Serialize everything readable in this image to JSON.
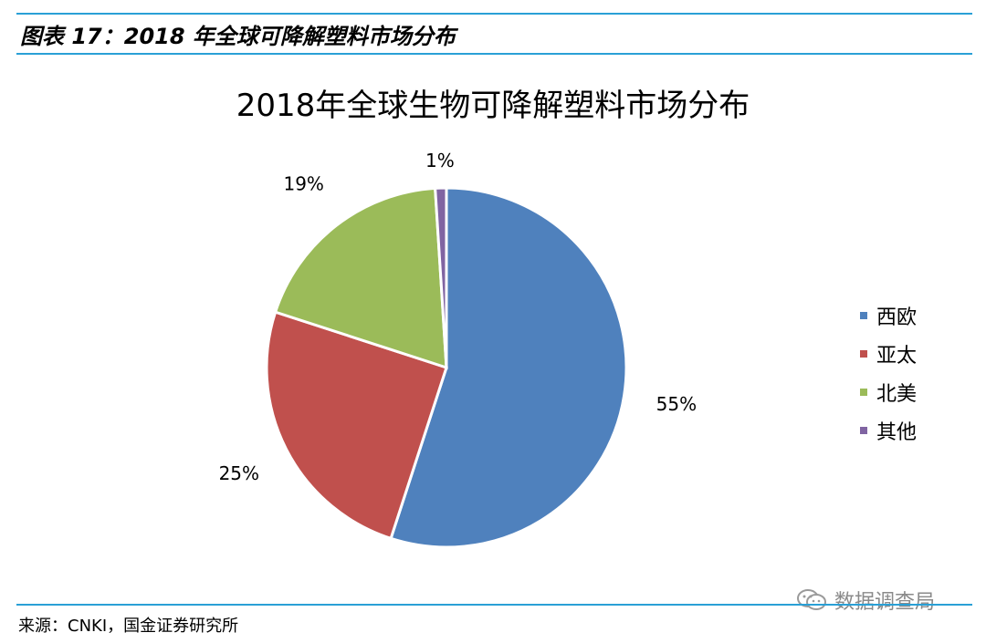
{
  "figure_title": "图表 17：2018 年全球可降解塑料市场分布",
  "source_text": "来源：CNKI，国金证券研究所",
  "watermark_text": "数据调查局",
  "chart_data": {
    "type": "pie",
    "title": "2018年全球生物可降解塑料市场分布",
    "legend_position": "right",
    "slices": [
      {
        "name": "西欧",
        "value": 55,
        "label": "55%",
        "color": "#4F81BD"
      },
      {
        "name": "亚太",
        "value": 25,
        "label": "25%",
        "color": "#C0504D"
      },
      {
        "name": "北美",
        "value": 19,
        "label": "19%",
        "color": "#9BBB59"
      },
      {
        "name": "其他",
        "value": 1,
        "label": "1%",
        "color": "#8064A2"
      }
    ]
  }
}
